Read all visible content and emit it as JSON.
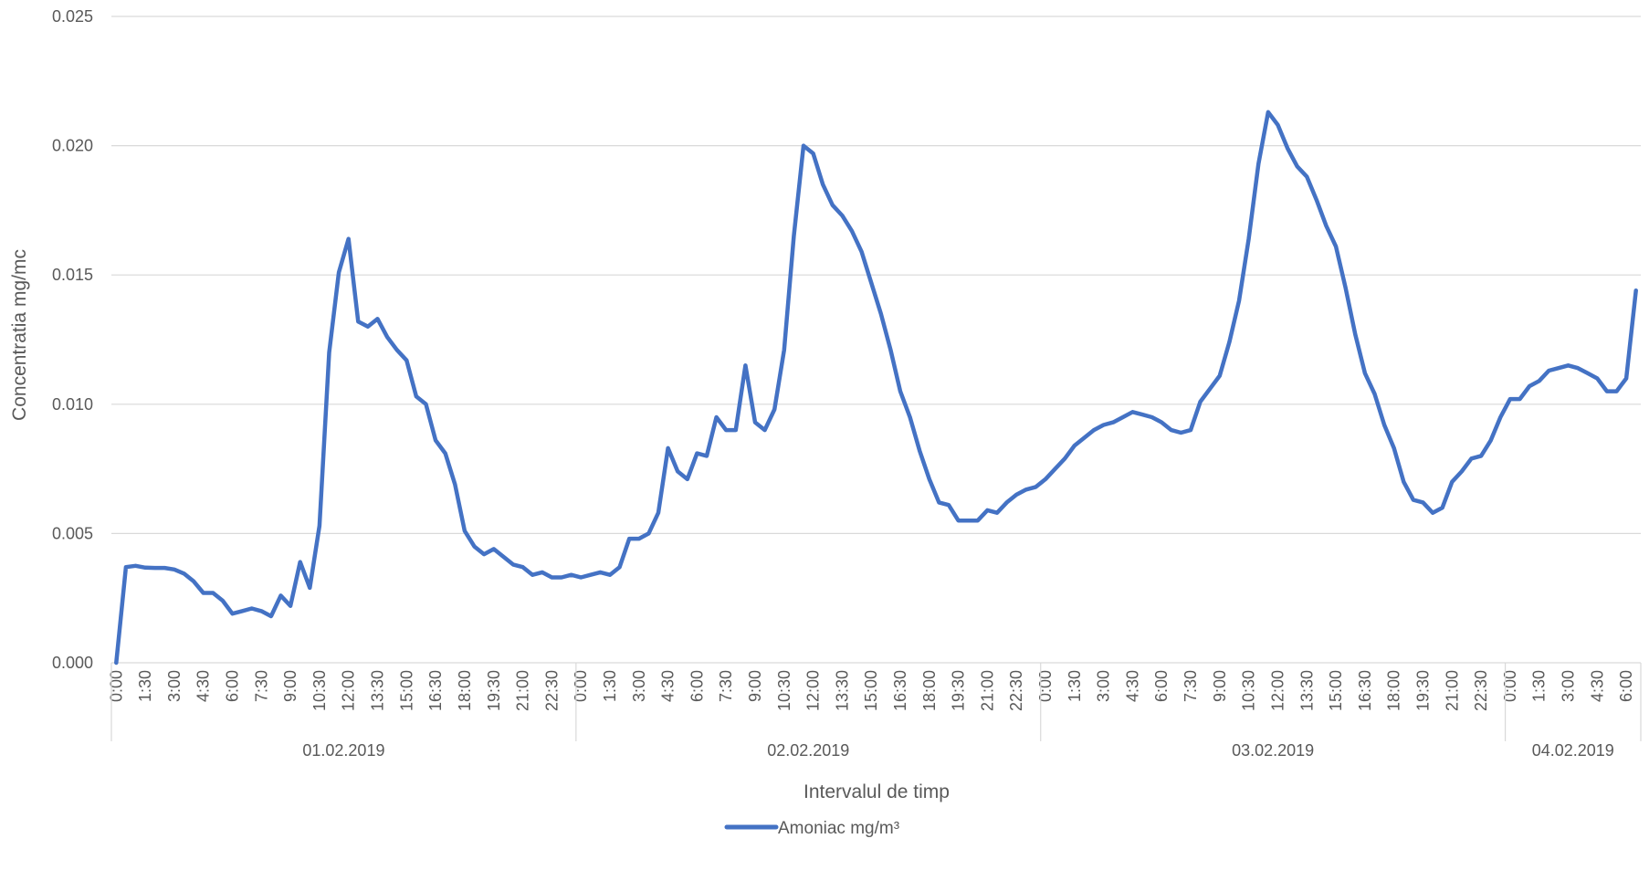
{
  "chart_data": {
    "type": "line",
    "title": "",
    "xlabel": "Intervalul de timp",
    "ylabel": "Concentratia mg/mc",
    "ylim": [
      0,
      0.025
    ],
    "y_ticks": [
      "0.000",
      "0.005",
      "0.010",
      "0.015",
      "0.020",
      "0.025"
    ],
    "grid": true,
    "legend_position": "bottom",
    "colors": {
      "series": "#4472C4",
      "grid": "#d9d9d9",
      "text": "#595959"
    },
    "x_tick_labels": [
      "0:00",
      "1:30",
      "3:00",
      "4:30",
      "6:00",
      "7:30",
      "9:00",
      "10:30",
      "12:00",
      "13:30",
      "15:00",
      "16:30",
      "18:00",
      "19:30",
      "21:00",
      "22:30",
      "0:00",
      "1:30",
      "3:00",
      "4:30",
      "6:00",
      "7:30",
      "9:00",
      "10:30",
      "12:00",
      "13:30",
      "15:00",
      "16:30",
      "18:00",
      "19:30",
      "21:00",
      "22:30",
      "0:00",
      "1:30",
      "3:00",
      "4:30",
      "6:00",
      "7:30",
      "9:00",
      "10:30",
      "12:00",
      "13:30",
      "15:00",
      "16:30",
      "18:00",
      "19:30",
      "21:00",
      "22:30",
      "0:00",
      "1:30",
      "3:00",
      "4:30",
      "6:00"
    ],
    "groups": [
      {
        "label": "01.02.2019",
        "points": 48
      },
      {
        "label": "02.02.2019",
        "points": 48
      },
      {
        "label": "03.02.2019",
        "points": 48
      },
      {
        "label": "04.02.2019",
        "points": 14
      }
    ],
    "series": [
      {
        "name": "Amoniac mg/m³",
        "values": [
          0.0,
          0.0037,
          0.00375,
          0.00368,
          0.00367,
          0.00367,
          0.00361,
          0.00345,
          0.00315,
          0.0027,
          0.0027,
          0.0024,
          0.0019,
          0.002,
          0.0021,
          0.002,
          0.0018,
          0.0026,
          0.0022,
          0.0039,
          0.0029,
          0.0053,
          0.012,
          0.0151,
          0.0164,
          0.0132,
          0.013,
          0.0133,
          0.0126,
          0.0121,
          0.0117,
          0.0103,
          0.01,
          0.0086,
          0.0081,
          0.0069,
          0.0051,
          0.0045,
          0.0042,
          0.0044,
          0.0041,
          0.0038,
          0.0037,
          0.0034,
          0.0035,
          0.0033,
          0.0033,
          0.0034,
          0.0033,
          0.0034,
          0.0035,
          0.0034,
          0.0037,
          0.0048,
          0.0048,
          0.005,
          0.0058,
          0.0083,
          0.0074,
          0.0071,
          0.0081,
          0.008,
          0.0095,
          0.009,
          0.009,
          0.0115,
          0.0093,
          0.009,
          0.0098,
          0.0121,
          0.0165,
          0.02,
          0.0197,
          0.0185,
          0.0177,
          0.0173,
          0.0167,
          0.0159,
          0.0147,
          0.0135,
          0.0121,
          0.0105,
          0.0095,
          0.0082,
          0.0071,
          0.0062,
          0.0061,
          0.0055,
          0.0055,
          0.0055,
          0.0059,
          0.0058,
          0.0062,
          0.0065,
          0.0067,
          0.0068,
          0.0071,
          0.0075,
          0.0079,
          0.0084,
          0.0087,
          0.009,
          0.0092,
          0.0093,
          0.0095,
          0.0097,
          0.0096,
          0.0095,
          0.0093,
          0.009,
          0.0089,
          0.009,
          0.0101,
          0.0106,
          0.0111,
          0.0124,
          0.014,
          0.0164,
          0.0193,
          0.0213,
          0.0208,
          0.0199,
          0.0192,
          0.0188,
          0.0179,
          0.0169,
          0.0161,
          0.0145,
          0.0127,
          0.0112,
          0.0104,
          0.0092,
          0.0083,
          0.007,
          0.0063,
          0.0062,
          0.0058,
          0.006,
          0.007,
          0.0074,
          0.0079,
          0.008,
          0.0086,
          0.0095,
          0.0102,
          0.0102,
          0.0107,
          0.0109,
          0.0113,
          0.0114,
          0.0115,
          0.0114,
          0.0112,
          0.011,
          0.0105,
          0.0105,
          0.011,
          0.0144
        ]
      }
    ]
  }
}
